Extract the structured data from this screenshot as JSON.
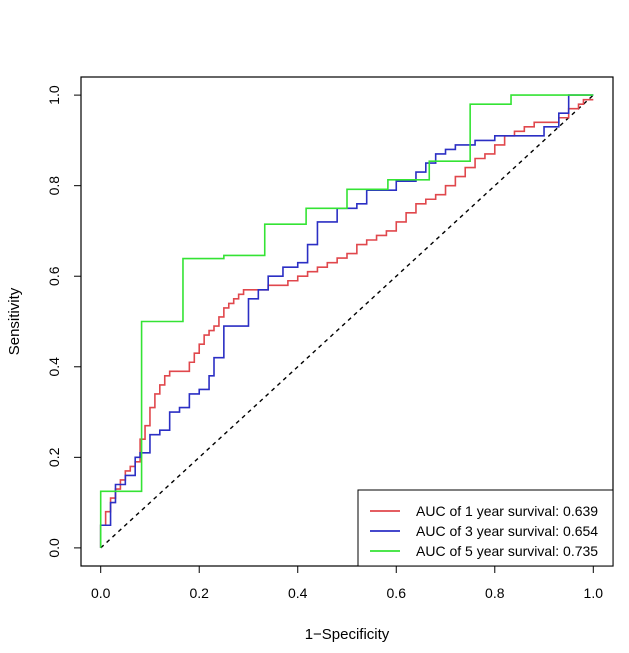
{
  "chart_data": {
    "type": "line",
    "title": "",
    "xlabel": "1−Specificity",
    "ylabel": "Sensitivity",
    "xlim": [
      -0.04,
      1.04
    ],
    "ylim": [
      -0.04,
      1.04
    ],
    "x_ticks": [
      0.0,
      0.2,
      0.4,
      0.6,
      0.8,
      1.0
    ],
    "x_tick_labels": [
      "0.0",
      "0.2",
      "0.4",
      "0.6",
      "0.8",
      "1.0"
    ],
    "y_ticks": [
      0.0,
      0.2,
      0.4,
      0.6,
      0.8,
      1.0
    ],
    "y_tick_labels": [
      "0.0",
      "0.2",
      "0.4",
      "0.6",
      "0.8",
      "1.0"
    ],
    "grid": false,
    "legend_position": "bottom-right",
    "reference_line": {
      "x": [
        0,
        1
      ],
      "y": [
        0,
        1
      ],
      "style": "dashed",
      "color": "#000000"
    },
    "series": [
      {
        "name": "AUC of 1 year survival: 0.639",
        "color": "#e0474c",
        "x": [
          0.0,
          0.0,
          0.01,
          0.01,
          0.02,
          0.02,
          0.03,
          0.03,
          0.04,
          0.04,
          0.05,
          0.05,
          0.06,
          0.06,
          0.07,
          0.07,
          0.08,
          0.08,
          0.09,
          0.09,
          0.1,
          0.1,
          0.11,
          0.11,
          0.12,
          0.12,
          0.13,
          0.13,
          0.14,
          0.14,
          0.15,
          0.15,
          0.18,
          0.18,
          0.19,
          0.19,
          0.2,
          0.2,
          0.21,
          0.21,
          0.22,
          0.22,
          0.23,
          0.23,
          0.24,
          0.24,
          0.25,
          0.25,
          0.26,
          0.26,
          0.27,
          0.27,
          0.28,
          0.28,
          0.29,
          0.29,
          0.3,
          0.3,
          0.31,
          0.31,
          0.32,
          0.32,
          0.34,
          0.34,
          0.37,
          0.37,
          0.38,
          0.38,
          0.4,
          0.4,
          0.42,
          0.42,
          0.44,
          0.44,
          0.46,
          0.46,
          0.48,
          0.48,
          0.5,
          0.5,
          0.52,
          0.52,
          0.54,
          0.54,
          0.56,
          0.56,
          0.58,
          0.58,
          0.6,
          0.6,
          0.62,
          0.62,
          0.64,
          0.64,
          0.66,
          0.66,
          0.68,
          0.68,
          0.7,
          0.7,
          0.72,
          0.72,
          0.74,
          0.74,
          0.76,
          0.76,
          0.78,
          0.78,
          0.8,
          0.8,
          0.82,
          0.82,
          0.84,
          0.84,
          0.86,
          0.86,
          0.88,
          0.88,
          0.93,
          0.93,
          0.95,
          0.95,
          0.97,
          0.97,
          0.98,
          0.98,
          1.0
        ],
        "y": [
          0.0,
          0.05,
          0.05,
          0.08,
          0.08,
          0.11,
          0.11,
          0.13,
          0.13,
          0.15,
          0.15,
          0.17,
          0.17,
          0.18,
          0.18,
          0.19,
          0.19,
          0.24,
          0.24,
          0.27,
          0.27,
          0.31,
          0.31,
          0.34,
          0.34,
          0.36,
          0.36,
          0.38,
          0.38,
          0.39,
          0.39,
          0.39,
          0.39,
          0.41,
          0.41,
          0.43,
          0.43,
          0.45,
          0.45,
          0.47,
          0.47,
          0.48,
          0.48,
          0.49,
          0.49,
          0.51,
          0.51,
          0.53,
          0.53,
          0.54,
          0.54,
          0.55,
          0.55,
          0.56,
          0.56,
          0.57,
          0.57,
          0.57,
          0.57,
          0.57,
          0.57,
          0.57,
          0.57,
          0.58,
          0.58,
          0.58,
          0.58,
          0.59,
          0.59,
          0.6,
          0.6,
          0.61,
          0.61,
          0.62,
          0.62,
          0.63,
          0.63,
          0.64,
          0.64,
          0.65,
          0.65,
          0.67,
          0.67,
          0.68,
          0.68,
          0.69,
          0.69,
          0.7,
          0.7,
          0.72,
          0.72,
          0.74,
          0.74,
          0.76,
          0.76,
          0.77,
          0.77,
          0.78,
          0.78,
          0.8,
          0.8,
          0.82,
          0.82,
          0.84,
          0.84,
          0.86,
          0.86,
          0.87,
          0.87,
          0.89,
          0.89,
          0.91,
          0.91,
          0.92,
          0.92,
          0.93,
          0.93,
          0.94,
          0.94,
          0.95,
          0.95,
          0.97,
          0.97,
          0.98,
          0.98,
          0.99,
          0.99
        ]
      },
      {
        "name": "AUC of 3 year survival: 0.654",
        "color": "#2b2fc4",
        "x": [
          0.0,
          0.0,
          0.02,
          0.02,
          0.03,
          0.03,
          0.05,
          0.05,
          0.07,
          0.07,
          0.08,
          0.08,
          0.1,
          0.1,
          0.12,
          0.12,
          0.14,
          0.14,
          0.16,
          0.16,
          0.18,
          0.18,
          0.2,
          0.2,
          0.22,
          0.22,
          0.23,
          0.23,
          0.25,
          0.25,
          0.3,
          0.3,
          0.32,
          0.32,
          0.34,
          0.34,
          0.37,
          0.37,
          0.4,
          0.4,
          0.42,
          0.42,
          0.44,
          0.44,
          0.48,
          0.48,
          0.52,
          0.52,
          0.54,
          0.54,
          0.6,
          0.6,
          0.64,
          0.64,
          0.66,
          0.66,
          0.68,
          0.68,
          0.7,
          0.7,
          0.72,
          0.72,
          0.76,
          0.76,
          0.8,
          0.8,
          0.84,
          0.84,
          0.9,
          0.9,
          0.93,
          0.93,
          0.95,
          0.95,
          0.97,
          0.97,
          1.0
        ],
        "y": [
          0.0,
          0.05,
          0.05,
          0.1,
          0.1,
          0.14,
          0.14,
          0.16,
          0.16,
          0.2,
          0.2,
          0.21,
          0.21,
          0.25,
          0.25,
          0.26,
          0.26,
          0.3,
          0.3,
          0.31,
          0.31,
          0.34,
          0.34,
          0.35,
          0.35,
          0.38,
          0.38,
          0.42,
          0.42,
          0.49,
          0.49,
          0.55,
          0.55,
          0.57,
          0.57,
          0.6,
          0.6,
          0.62,
          0.62,
          0.63,
          0.63,
          0.67,
          0.67,
          0.72,
          0.72,
          0.75,
          0.75,
          0.76,
          0.76,
          0.79,
          0.79,
          0.81,
          0.81,
          0.83,
          0.83,
          0.85,
          0.85,
          0.87,
          0.87,
          0.88,
          0.88,
          0.89,
          0.89,
          0.9,
          0.9,
          0.91,
          0.91,
          0.91,
          0.91,
          0.93,
          0.93,
          0.96,
          0.96,
          1.0,
          1.0,
          1.0,
          1.0
        ]
      },
      {
        "name": "AUC of 5 year survival: 0.735",
        "color": "#34e334",
        "x": [
          0.0,
          0.0,
          0.083,
          0.083,
          0.167,
          0.167,
          0.25,
          0.25,
          0.333,
          0.333,
          0.417,
          0.417,
          0.5,
          0.5,
          0.583,
          0.583,
          0.667,
          0.667,
          0.75,
          0.75,
          0.833,
          0.833,
          1.0
        ],
        "y": [
          0.0,
          0.125,
          0.125,
          0.5,
          0.5,
          0.639,
          0.639,
          0.646,
          0.646,
          0.715,
          0.715,
          0.75,
          0.75,
          0.792,
          0.792,
          0.813,
          0.813,
          0.854,
          0.854,
          0.98,
          0.98,
          1.0,
          1.0
        ]
      }
    ]
  }
}
